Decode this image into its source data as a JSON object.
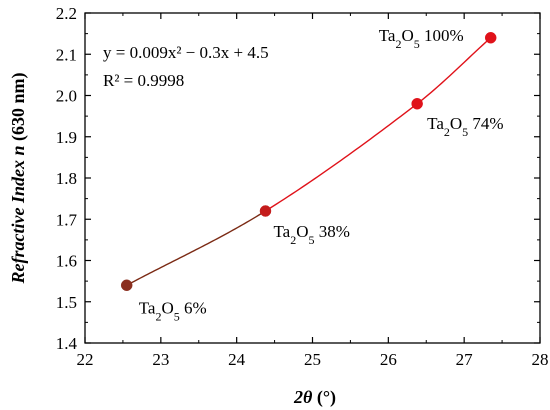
{
  "chart_data": {
    "type": "scatter",
    "xlabel": {
      "main": "2θ",
      "unit": " (°)"
    },
    "ylabel": "Refractive Index n (630 nm)",
    "xlim": [
      22,
      28
    ],
    "ylim": [
      1.4,
      2.2
    ],
    "xticks": [
      22,
      23,
      24,
      25,
      26,
      27,
      28
    ],
    "yticks": [
      1.4,
      1.5,
      1.6,
      1.7,
      1.8,
      1.9,
      2.0,
      2.1,
      2.2
    ],
    "grid": false,
    "fit": {
      "equation": "y = 0.009x² − 0.3x + 4.5",
      "r_squared": "R² = 0.9998",
      "line_color": "#e0121a",
      "segment_colors": [
        "#7b2a14",
        "#e0121a"
      ]
    },
    "points": [
      {
        "x": 22.55,
        "y": 1.54,
        "label": "Ta2O5 6%",
        "color": "#8b2f1f"
      },
      {
        "x": 24.38,
        "y": 1.72,
        "label": "Ta2O5 38%",
        "color": "#c41c1c"
      },
      {
        "x": 26.38,
        "y": 1.98,
        "label": "Ta2O5 74%",
        "color": "#e0121a"
      },
      {
        "x": 27.35,
        "y": 2.14,
        "label": "Ta2O5 100%",
        "color": "#e0121a"
      }
    ]
  }
}
